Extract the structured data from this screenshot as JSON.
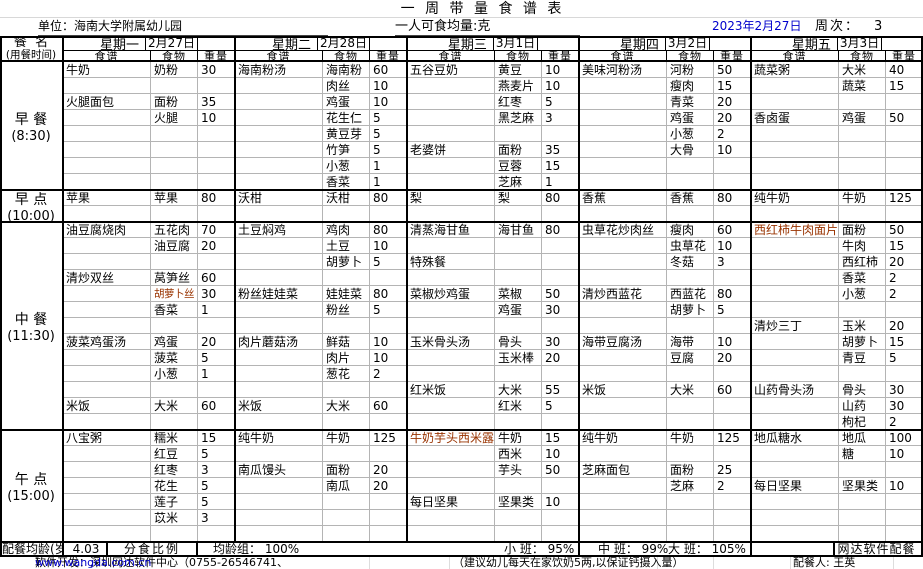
{
  "meta": {
    "title": "一 周 带 量 食 谱 表",
    "unit": "单位：海南大学附属幼儿园",
    "per_person": "一人可食均量:克",
    "date": "2023年2月27日",
    "week_label": "周次：",
    "week_value": "3",
    "accent_blue": "#0000cc",
    "accent_red": "#993300"
  },
  "header": {
    "meal_col_line1": "餐  名",
    "meal_col_line2": "(用餐时间)",
    "sub_columns": [
      "食谱",
      "食物",
      "重量"
    ],
    "days": [
      {
        "name": "星期一",
        "date": "2月27日"
      },
      {
        "name": "星期二",
        "date": "2月28日"
      },
      {
        "name": "星期三",
        "date": "3月1日"
      },
      {
        "name": "星期四",
        "date": "3月2日"
      },
      {
        "name": "星期五",
        "date": "3月3日"
      }
    ]
  },
  "sections": [
    {
      "meal": "早 餐",
      "time": "(8:30)",
      "rows": 8,
      "days": [
        {
          "entries": [
            {
              "row": 1,
              "recipe": "牛奶",
              "food": "奶粉",
              "weight": "30"
            },
            {
              "row": 3,
              "recipe": "火腿面包",
              "food": "面粉",
              "weight": "35"
            },
            {
              "row": 4,
              "food": "火腿",
              "weight": "10"
            }
          ]
        },
        {
          "entries": [
            {
              "row": 1,
              "recipe": "海南粉汤",
              "food": "海南粉",
              "weight": "60"
            },
            {
              "row": 2,
              "food": "肉丝",
              "weight": "10"
            },
            {
              "row": 3,
              "food": "鸡蛋",
              "weight": "10"
            },
            {
              "row": 4,
              "food": "花生仁",
              "weight": "5"
            },
            {
              "row": 5,
              "food": "黄豆芽",
              "weight": "5"
            },
            {
              "row": 6,
              "food": "竹笋",
              "weight": "5"
            },
            {
              "row": 7,
              "food": "小葱",
              "weight": "1"
            },
            {
              "row": 8,
              "food": "香菜",
              "weight": "1"
            }
          ]
        },
        {
          "entries": [
            {
              "row": 1,
              "recipe": "五谷豆奶",
              "food": "黄豆",
              "weight": "10"
            },
            {
              "row": 2,
              "food": "燕麦片",
              "weight": "10"
            },
            {
              "row": 3,
              "food": "红枣",
              "weight": "5"
            },
            {
              "row": 4,
              "food": "黑芝麻",
              "weight": "3"
            },
            {
              "row": 6,
              "recipe": "老婆饼",
              "food": "面粉",
              "weight": "35"
            },
            {
              "row": 7,
              "food": "豆蓉",
              "weight": "15"
            },
            {
              "row": 8,
              "food": "芝麻",
              "weight": "1"
            }
          ]
        },
        {
          "entries": [
            {
              "row": 1,
              "recipe": "美味河粉汤",
              "food": "河粉",
              "weight": "50"
            },
            {
              "row": 2,
              "food": "瘦肉",
              "weight": "15"
            },
            {
              "row": 3,
              "food": "青菜",
              "weight": "20"
            },
            {
              "row": 4,
              "food": "鸡蛋",
              "weight": "20"
            },
            {
              "row": 5,
              "food": "小葱",
              "weight": "2"
            },
            {
              "row": 6,
              "food": "大骨",
              "weight": "10"
            }
          ]
        },
        {
          "entries": [
            {
              "row": 1,
              "recipe": "蔬菜粥",
              "food": "大米",
              "weight": "40"
            },
            {
              "row": 2,
              "food": "蔬菜",
              "weight": "15"
            },
            {
              "row": 4,
              "recipe": "香卤蛋",
              "food": "鸡蛋",
              "weight": "50"
            }
          ]
        }
      ]
    },
    {
      "meal": "早 点",
      "time": "(10:00)",
      "rows": 2,
      "days": [
        {
          "entries": [
            {
              "row": 1,
              "recipe": "苹果",
              "food": "苹果",
              "weight": "80"
            }
          ]
        },
        {
          "entries": [
            {
              "row": 1,
              "recipe": "沃柑",
              "food": "沃柑",
              "weight": "80"
            }
          ]
        },
        {
          "entries": [
            {
              "row": 1,
              "recipe": "梨",
              "food": "梨",
              "weight": "80"
            }
          ]
        },
        {
          "entries": [
            {
              "row": 1,
              "recipe": "香蕉",
              "food": "香蕉",
              "weight": "80"
            }
          ]
        },
        {
          "entries": [
            {
              "row": 1,
              "recipe": "纯牛奶",
              "food": "牛奶",
              "weight": "125"
            }
          ]
        }
      ]
    },
    {
      "meal": "中 餐",
      "time": "(11:30)",
      "rows": 13,
      "days": [
        {
          "entries": [
            {
              "row": 1,
              "recipe": "油豆腐烧肉",
              "food": "五花肉",
              "weight": "70"
            },
            {
              "row": 2,
              "food": "油豆腐",
              "weight": "20"
            },
            {
              "row": 4,
              "recipe": "清炒双丝",
              "food": "莴笋丝",
              "weight": "60"
            },
            {
              "row": 5,
              "food": "胡萝卜丝",
              "weight": "30",
              "food_red": true
            },
            {
              "row": 6,
              "food": "香菜",
              "weight": "1"
            },
            {
              "row": 8,
              "recipe": "菠菜鸡蛋汤",
              "food": "鸡蛋",
              "weight": "20"
            },
            {
              "row": 9,
              "food": "菠菜",
              "weight": "5"
            },
            {
              "row": 10,
              "food": "小葱",
              "weight": "1"
            },
            {
              "row": 12,
              "recipe": "米饭",
              "food": "大米",
              "weight": "60"
            }
          ]
        },
        {
          "entries": [
            {
              "row": 1,
              "recipe": "土豆焖鸡",
              "food": "鸡肉",
              "weight": "80"
            },
            {
              "row": 2,
              "food": "土豆",
              "weight": "10"
            },
            {
              "row": 3,
              "food": "胡萝卜",
              "weight": "5"
            },
            {
              "row": 5,
              "recipe": "粉丝娃娃菜",
              "food": "娃娃菜",
              "weight": "80"
            },
            {
              "row": 6,
              "food": "粉丝",
              "weight": "5"
            },
            {
              "row": 8,
              "recipe": "肉片蘑菇汤",
              "food": "鲜菇",
              "weight": "10"
            },
            {
              "row": 9,
              "food": "肉片",
              "weight": "10"
            },
            {
              "row": 10,
              "food": "葱花",
              "weight": "2"
            },
            {
              "row": 12,
              "recipe": "米饭",
              "food": "大米",
              "weight": "60"
            }
          ]
        },
        {
          "entries": [
            {
              "row": 1,
              "recipe": "清蒸海甘鱼",
              "food": "海甘鱼",
              "weight": "80"
            },
            {
              "row": 3,
              "recipe": "特殊餐"
            },
            {
              "row": 5,
              "recipe": "菜椒炒鸡蛋",
              "food": "菜椒",
              "weight": "50"
            },
            {
              "row": 6,
              "food": "鸡蛋",
              "weight": "30"
            },
            {
              "row": 8,
              "recipe": "玉米骨头汤",
              "food": "骨头",
              "weight": "30"
            },
            {
              "row": 9,
              "food": "玉米棒",
              "weight": "20"
            },
            {
              "row": 11,
              "recipe": "红米饭",
              "food": "大米",
              "weight": "55"
            },
            {
              "row": 12,
              "food": "红米",
              "weight": "5"
            }
          ]
        },
        {
          "entries": [
            {
              "row": 1,
              "recipe": "虫草花炒肉丝",
              "food": "瘦肉",
              "weight": "60"
            },
            {
              "row": 2,
              "food": "虫草花",
              "weight": "10"
            },
            {
              "row": 3,
              "food": "冬菇",
              "weight": "3"
            },
            {
              "row": 5,
              "recipe": "清炒西蓝花",
              "food": "西蓝花",
              "weight": "80"
            },
            {
              "row": 6,
              "food": "胡萝卜",
              "weight": "5"
            },
            {
              "row": 8,
              "recipe": "海带豆腐汤",
              "food": "海带",
              "weight": "10"
            },
            {
              "row": 9,
              "food": "豆腐",
              "weight": "20"
            },
            {
              "row": 11,
              "recipe": "米饭",
              "food": "大米",
              "weight": "60"
            }
          ]
        },
        {
          "entries": [
            {
              "row": 1,
              "recipe": "西红柿牛肉面片",
              "food": "面粉",
              "weight": "50",
              "recipe_red": true
            },
            {
              "row": 2,
              "food": "牛肉",
              "weight": "15"
            },
            {
              "row": 3,
              "food": "西红柿",
              "weight": "20"
            },
            {
              "row": 4,
              "food": "香菜",
              "weight": "2"
            },
            {
              "row": 5,
              "food": "小葱",
              "weight": "2"
            },
            {
              "row": 7,
              "recipe": "清炒三丁",
              "food": "玉米",
              "weight": "20"
            },
            {
              "row": 8,
              "food": "胡萝卜",
              "weight": "15"
            },
            {
              "row": 9,
              "food": "青豆",
              "weight": "5"
            },
            {
              "row": 11,
              "recipe": "山药骨头汤",
              "food": "骨头",
              "weight": "30"
            },
            {
              "row": 12,
              "food": "山药",
              "weight": "30"
            },
            {
              "row": 13,
              "food": "枸杞",
              "weight": "2"
            }
          ]
        }
      ]
    },
    {
      "meal": "午 点",
      "time": "(15:00)",
      "rows": 7,
      "days": [
        {
          "entries": [
            {
              "row": 1,
              "recipe": "八宝粥",
              "food": "糯米",
              "weight": "15"
            },
            {
              "row": 2,
              "food": "红豆",
              "weight": "5"
            },
            {
              "row": 3,
              "food": "红枣",
              "weight": "3"
            },
            {
              "row": 4,
              "food": "花生",
              "weight": "5"
            },
            {
              "row": 5,
              "food": "莲子",
              "weight": "5"
            },
            {
              "row": 6,
              "food": "苡米",
              "weight": "3"
            }
          ]
        },
        {
          "entries": [
            {
              "row": 1,
              "recipe": "纯牛奶",
              "food": "牛奶",
              "weight": "125"
            },
            {
              "row": 3,
              "recipe": "南瓜馒头",
              "food": "面粉",
              "weight": "20"
            },
            {
              "row": 4,
              "food": "南瓜",
              "weight": "20"
            }
          ]
        },
        {
          "entries": [
            {
              "row": 1,
              "recipe": "牛奶芋头西米露",
              "food": "牛奶",
              "weight": "15",
              "recipe_red": true
            },
            {
              "row": 2,
              "food": "西米",
              "weight": "10"
            },
            {
              "row": 3,
              "food": "芋头",
              "weight": "50"
            },
            {
              "row": 5,
              "recipe": "每日坚果",
              "food": "坚果类",
              "weight": "10"
            }
          ]
        },
        {
          "entries": [
            {
              "row": 1,
              "recipe": "纯牛奶",
              "food": "牛奶",
              "weight": "125"
            },
            {
              "row": 3,
              "recipe": "芝麻面包",
              "food": "面粉",
              "weight": "25"
            },
            {
              "row": 4,
              "food": "芝麻",
              "weight": "2"
            }
          ]
        },
        {
          "entries": [
            {
              "row": 1,
              "recipe": "地瓜糖水",
              "food": "地瓜",
              "weight": "100"
            },
            {
              "row": 2,
              "food": "糖",
              "weight": "10"
            },
            {
              "row": 4,
              "recipe": "每日坚果",
              "food": "坚果类",
              "weight": "10"
            }
          ]
        }
      ]
    }
  ],
  "summary": {
    "avg_age_label": "配餐均龄(岁",
    "avg_age_value": "4.03",
    "ratio_label": "分食比例",
    "age_group": "均龄组： 100%",
    "small_class": "小 班： 95%",
    "middle_class": "中 班： 99%",
    "large_class": "大 班： 105%",
    "software_badge": "网达软件配餐"
  },
  "footer": {
    "developer_prefix": "软件开发：深圳网达软件中心（0755-26546741、",
    "developer_url": "www.wangda.com.cn",
    "developer_suffix": "）",
    "note": "（建议幼儿每天在家饮奶5两,以保证钙摄入量）",
    "preparer": "配餐人: 王英"
  }
}
